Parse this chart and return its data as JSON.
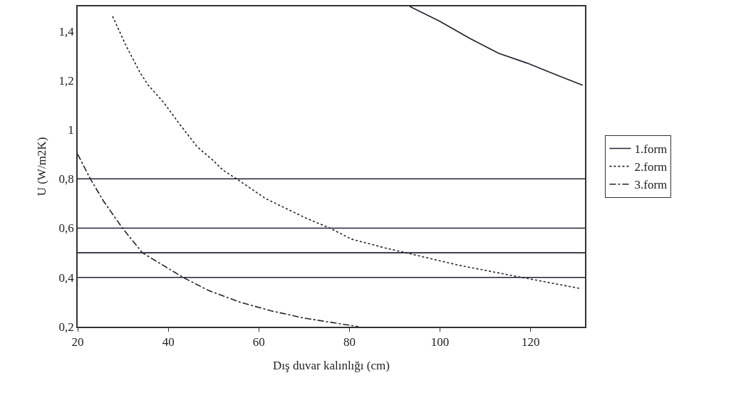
{
  "chart_data": {
    "type": "line",
    "xlabel": "Dış duvar kalınlığı (cm)",
    "ylabel": "U (W/m2K)",
    "xlim": [
      20,
      132
    ],
    "xticks": [
      20,
      40,
      60,
      80,
      100,
      120
    ],
    "ylim": [
      0.2,
      1.5
    ],
    "yticks": [
      {
        "value": 0.2,
        "label": "0,2"
      },
      {
        "value": 0.4,
        "label": "0,4"
      },
      {
        "value": 0.6,
        "label": "0,6"
      },
      {
        "value": 0.8,
        "label": "0,8"
      },
      1,
      {
        "value": 1.2,
        "label": "1,2"
      },
      {
        "value": 1.4,
        "label": "1,4"
      }
    ],
    "grid": false,
    "legend": "right",
    "marker": "none",
    "ref_lines": [
      {
        "axis": "y",
        "value": 0.8,
        "color": "#222233"
      },
      {
        "axis": "y",
        "value": 0.6,
        "color": "#222233"
      },
      {
        "axis": "y",
        "value": 0.5,
        "color": "#222233"
      },
      {
        "axis": "y",
        "value": 0.4,
        "color": "#222233"
      }
    ],
    "series": [
      {
        "name": "1.form",
        "color": "#222233",
        "line_style": "solid",
        "x": [
          93.3,
          99.9,
          106.6,
          112.9,
          119.2,
          126,
          131.5
        ],
        "values": [
          1.5,
          1.44,
          1.37,
          1.31,
          1.27,
          1.22,
          1.18
        ]
      },
      {
        "name": "2.form",
        "color": "#222233",
        "line_style": "dotted",
        "x": [
          27.7,
          30.7,
          33.8,
          35.6,
          39,
          42.6,
          46.4,
          49.6,
          52.1,
          55.1,
          61.5,
          70.5,
          75.7,
          80.4,
          87.8,
          92.5,
          104,
          118.1,
          131
        ],
        "values": [
          1.46,
          1.34,
          1.23,
          1.18,
          1.11,
          1.02,
          0.93,
          0.88,
          0.835,
          0.8,
          0.72,
          0.64,
          0.6,
          0.556,
          0.52,
          0.5,
          0.45,
          0.4,
          0.355
        ]
      },
      {
        "name": "3.form",
        "color": "#222233",
        "line_style": "dashdot",
        "x": [
          20,
          22.8,
          25.7,
          29.9,
          34.3,
          43.3,
          48.9,
          55.8,
          62.6,
          70,
          80.4,
          82
        ],
        "values": [
          0.9,
          0.8,
          0.71,
          0.6,
          0.5,
          0.4,
          0.347,
          0.3,
          0.265,
          0.235,
          0.205,
          0.2
        ]
      }
    ]
  }
}
